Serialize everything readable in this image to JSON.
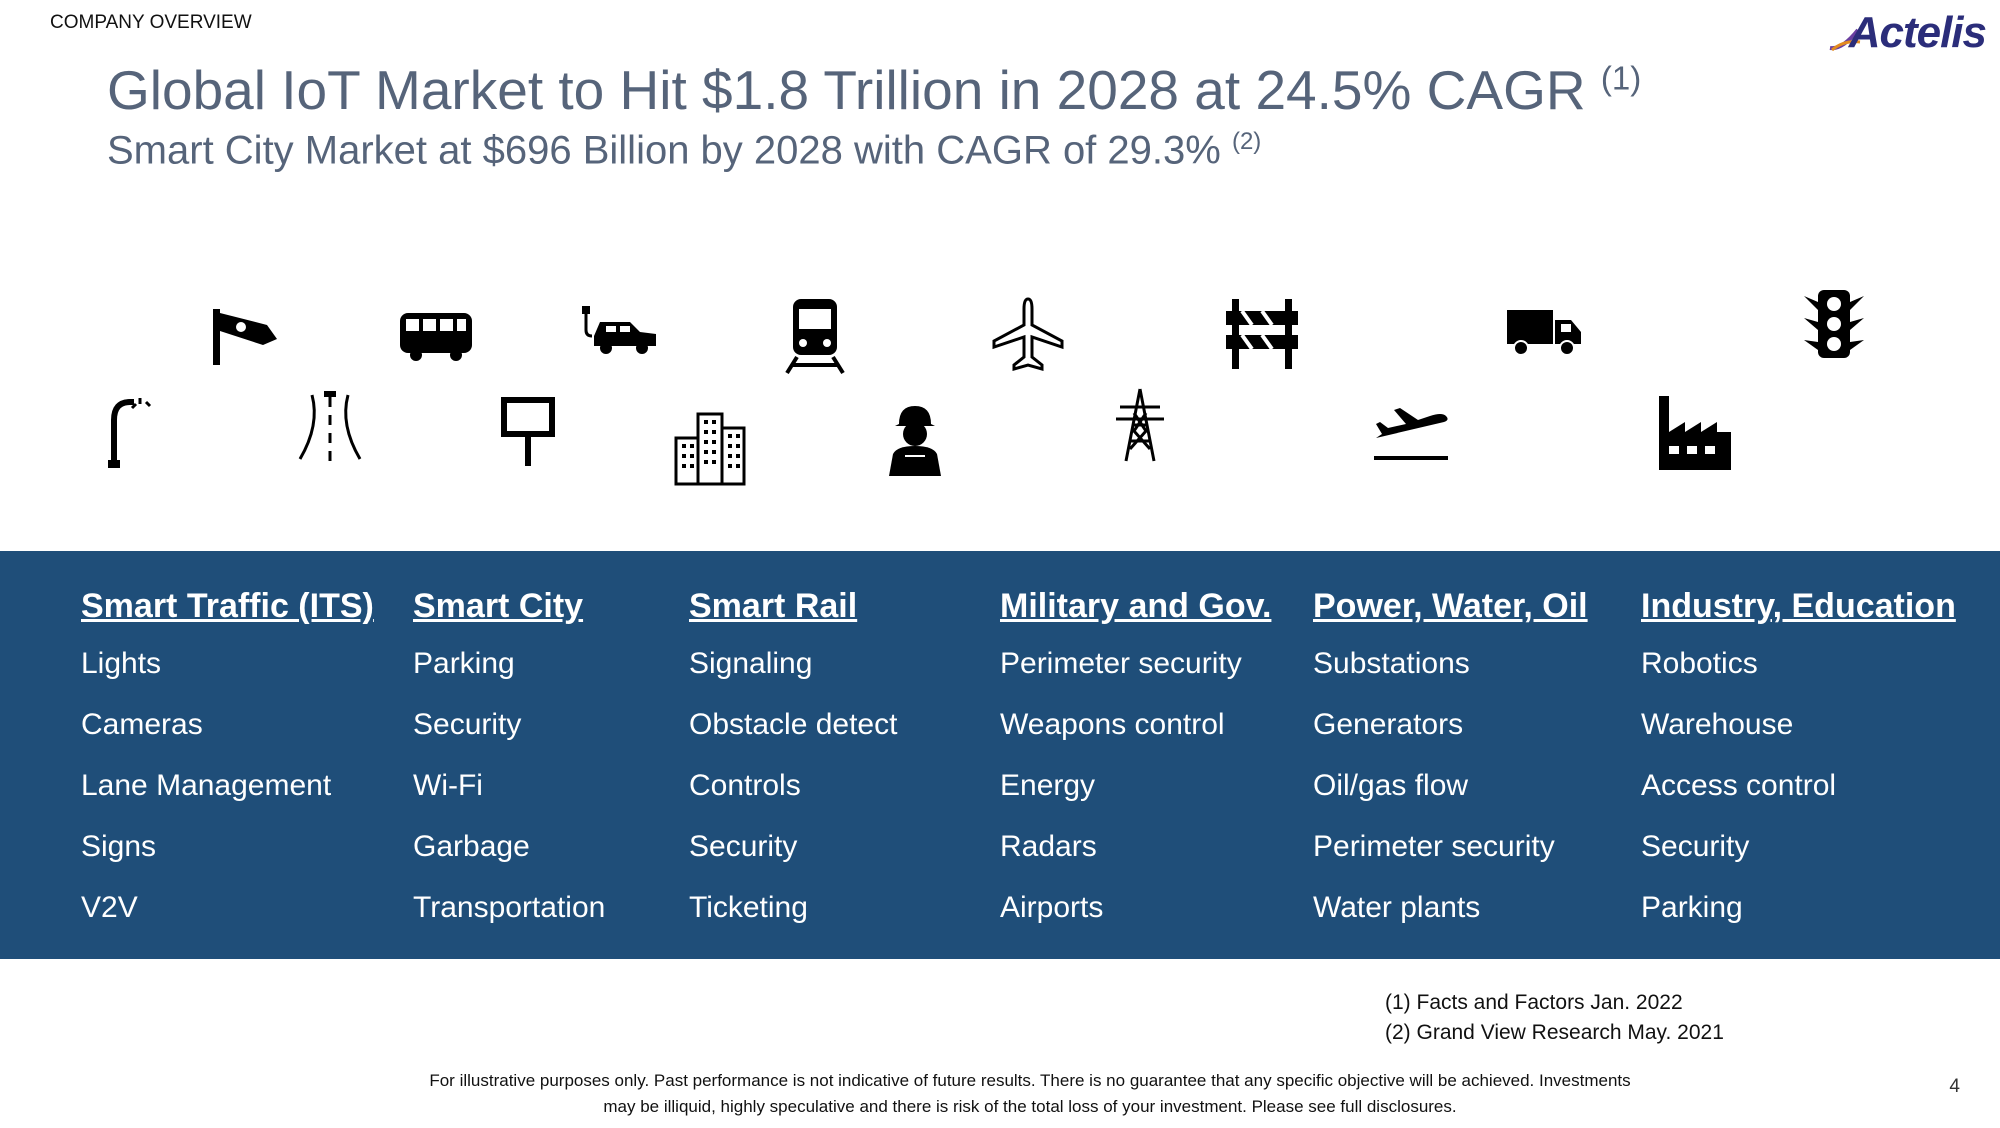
{
  "section_label": "COMPANY OVERVIEW",
  "logo_text": "Actelis",
  "title": {
    "main": "Global IoT Market to Hit $1.8 Trillion in 2028 at 24.5% CAGR",
    "main_sup": "(1)",
    "sub": "Smart City Market at $696 Billion by 2028 with CAGR of 29.3%",
    "sub_sup": "(2)"
  },
  "icons": [
    "security-camera-icon",
    "bus-icon",
    "electric-car-icon",
    "train-icon",
    "airplane-icon",
    "road-barrier-icon",
    "truck-icon",
    "traffic-light-icon",
    "street-light-icon",
    "road-lanes-icon",
    "sign-post-icon",
    "city-buildings-icon",
    "soldier-icon",
    "power-tower-icon",
    "plane-takeoff-icon",
    "factory-icon"
  ],
  "categories": [
    {
      "heading": "Smart Traffic (ITS)",
      "items": [
        "Lights",
        "Cameras",
        "Lane Management",
        "Signs",
        "V2V"
      ]
    },
    {
      "heading": "Smart City",
      "items": [
        "Parking",
        "Security",
        "Wi-Fi",
        "Garbage",
        "Transportation"
      ]
    },
    {
      "heading": "Smart Rail",
      "items": [
        "Signaling",
        "Obstacle detect",
        "Controls",
        "Security",
        "Ticketing"
      ]
    },
    {
      "heading": "Military and Gov.",
      "items": [
        "Perimeter security",
        "Weapons control",
        "Energy",
        "Radars",
        "Airports"
      ]
    },
    {
      "heading": "Power, Water, Oil",
      "items": [
        "Substations",
        "Generators",
        "Oil/gas flow",
        "Perimeter security",
        "Water plants"
      ]
    },
    {
      "heading": "Industry, Education",
      "items": [
        "Robotics",
        "Warehouse",
        "Access control",
        "Security",
        "Parking"
      ]
    }
  ],
  "footnotes": [
    "(1) Facts and Factors Jan. 2022",
    "(2) Grand View Research May. 2021"
  ],
  "disclaimer": "For illustrative purposes only. Past performance is not indicative of future results.  There is no guarantee that any specific objective will be achieved.  Investments may be illiquid, highly speculative and there is risk of the total loss of your investment.  Please see full disclosures.",
  "page_number": "4",
  "colors": {
    "band": "#1f4e79",
    "title": "#56647a",
    "logo": "#2b2d7a"
  }
}
